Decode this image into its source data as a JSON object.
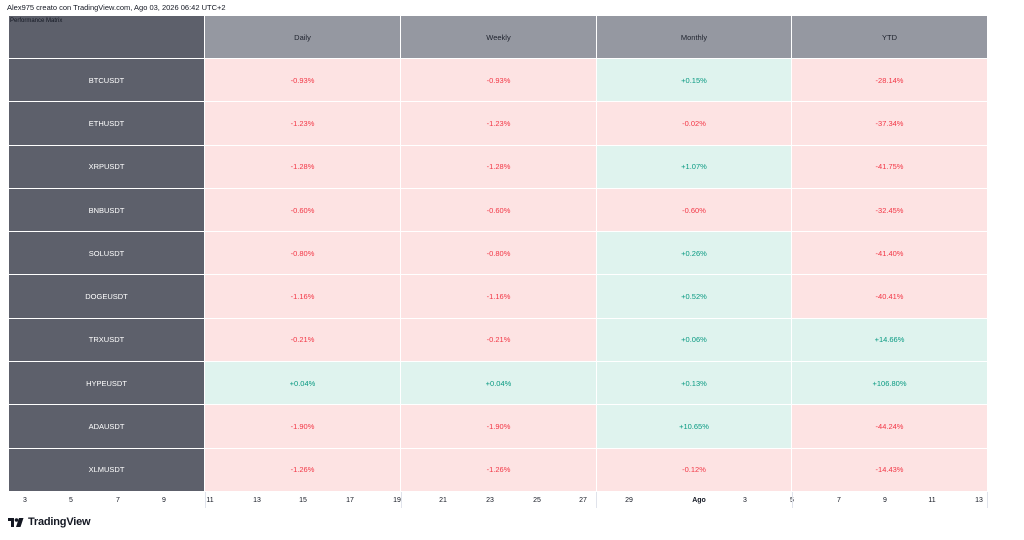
{
  "header_text": "Alex975 creato con TradingView.com, Ago 03, 2026 06:42 UTC+2",
  "table": {
    "title": "Performance Matrix",
    "columns": [
      "Daily",
      "Weekly",
      "Monthly",
      "YTD"
    ],
    "rows": [
      {
        "symbol": "BTCUSDT",
        "values": [
          "-0.93%",
          "-0.93%",
          "+0.15%",
          "-28.14%"
        ]
      },
      {
        "symbol": "ETHUSDT",
        "values": [
          "-1.23%",
          "-1.23%",
          "-0.02%",
          "-37.34%"
        ]
      },
      {
        "symbol": "XRPUSDT",
        "values": [
          "-1.28%",
          "-1.28%",
          "+1.07%",
          "-41.75%"
        ]
      },
      {
        "symbol": "BNBUSDT",
        "values": [
          "-0.60%",
          "-0.60%",
          "-0.60%",
          "-32.45%"
        ]
      },
      {
        "symbol": "SOLUSDT",
        "values": [
          "-0.80%",
          "-0.80%",
          "+0.26%",
          "-41.40%"
        ]
      },
      {
        "symbol": "DOGEUSDT",
        "values": [
          "-1.16%",
          "-1.16%",
          "+0.52%",
          "-40.41%"
        ]
      },
      {
        "symbol": "TRXUSDT",
        "values": [
          "-0.21%",
          "-0.21%",
          "+0.06%",
          "+14.66%"
        ]
      },
      {
        "symbol": "HYPEUSDT",
        "values": [
          "+0.04%",
          "+0.04%",
          "+0.13%",
          "+106.80%"
        ]
      },
      {
        "symbol": "ADAUSDT",
        "values": [
          "-1.90%",
          "-1.90%",
          "+10.65%",
          "-44.24%"
        ]
      },
      {
        "symbol": "XLMUSDT",
        "values": [
          "-1.26%",
          "-1.26%",
          "-0.12%",
          "-14.43%"
        ]
      }
    ]
  },
  "x_axis": {
    "ticks": [
      "3",
      "5",
      "7",
      "9",
      "11",
      "13",
      "15",
      "17",
      "19",
      "21",
      "23",
      "25",
      "27",
      "29",
      "Ago",
      "3",
      "5",
      "7",
      "9",
      "11",
      "13"
    ]
  },
  "colors": {
    "positive_text": "#089981",
    "negative_text": "#f23645",
    "positive_bg": "#dff3ee",
    "negative_bg": "#fde3e3",
    "header_bg": "#9598a1",
    "symbol_bg": "#5d606b"
  },
  "logo": {
    "text": "TradingView",
    "icon": "tradingview-logo-icon"
  }
}
